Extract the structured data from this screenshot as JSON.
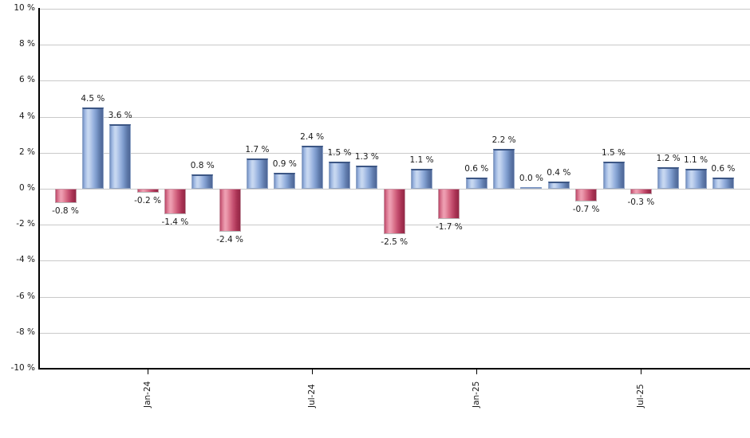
{
  "chart_data": {
    "type": "bar",
    "title": "",
    "unit": "%",
    "ylim": [
      -10,
      10
    ],
    "grid": true,
    "legend": false,
    "y_ticks": [
      {
        "value": 10,
        "label": "10 %"
      },
      {
        "value": 8,
        "label": "8 %"
      },
      {
        "value": 6,
        "label": "6 %"
      },
      {
        "value": 4,
        "label": "4 %"
      },
      {
        "value": 2,
        "label": "2 %"
      },
      {
        "value": 0,
        "label": "0 %"
      },
      {
        "value": -2,
        "label": "-2 %"
      },
      {
        "value": -4,
        "label": "-4 %"
      },
      {
        "value": -6,
        "label": "-6 %"
      },
      {
        "value": -8,
        "label": "-8 %"
      },
      {
        "value": -10,
        "label": "-10 %"
      }
    ],
    "bars": [
      {
        "value": -0.8,
        "label": "-0.8 %"
      },
      {
        "value": 4.5,
        "label": "4.5 %"
      },
      {
        "value": 3.6,
        "label": "3.6 %"
      },
      {
        "value": -0.2,
        "label": "-0.2 %"
      },
      {
        "value": -1.4,
        "label": "-1.4 %"
      },
      {
        "value": 0.8,
        "label": "0.8 %"
      },
      {
        "value": -2.4,
        "label": "-2.4 %"
      },
      {
        "value": 1.7,
        "label": "1.7 %"
      },
      {
        "value": 0.9,
        "label": "0.9 %"
      },
      {
        "value": 2.4,
        "label": "2.4 %"
      },
      {
        "value": 1.5,
        "label": "1.5 %"
      },
      {
        "value": 1.3,
        "label": "1.3 %"
      },
      {
        "value": -2.5,
        "label": "-2.5 %"
      },
      {
        "value": 1.1,
        "label": "1.1 %"
      },
      {
        "value": -1.7,
        "label": "-1.7 %"
      },
      {
        "value": 0.6,
        "label": "0.6 %"
      },
      {
        "value": 2.2,
        "label": "2.2 %"
      },
      {
        "value": 0.0,
        "label": "0.0 %"
      },
      {
        "value": 0.4,
        "label": "0.4 %"
      },
      {
        "value": -0.7,
        "label": "-0.7 %"
      },
      {
        "value": 1.5,
        "label": "1.5 %"
      },
      {
        "value": -0.3,
        "label": "-0.3 %"
      },
      {
        "value": 1.2,
        "label": "1.2 %"
      },
      {
        "value": 1.1,
        "label": "1.1 %"
      },
      {
        "value": 0.6,
        "label": "0.6 %"
      }
    ],
    "x_ticks": [
      {
        "bar_index": 3,
        "label": "Jan-24"
      },
      {
        "bar_index": 9,
        "label": "Jul-24"
      },
      {
        "bar_index": 15,
        "label": "Jan-25"
      },
      {
        "bar_index": 21,
        "label": "Jul-25"
      }
    ],
    "colors": {
      "positive_bar_base": "#7e9ccd",
      "positive_bar_highlight": "#c8d8f0",
      "positive_bar_dark": "#4d6696",
      "negative_bar_base": "#c44e6f",
      "negative_bar_highlight": "#ee9fb2",
      "negative_bar_dark": "#932946",
      "axis_line": "#000000",
      "gridline": "#c9c9c9",
      "label_text": "#1a1a1a"
    }
  }
}
